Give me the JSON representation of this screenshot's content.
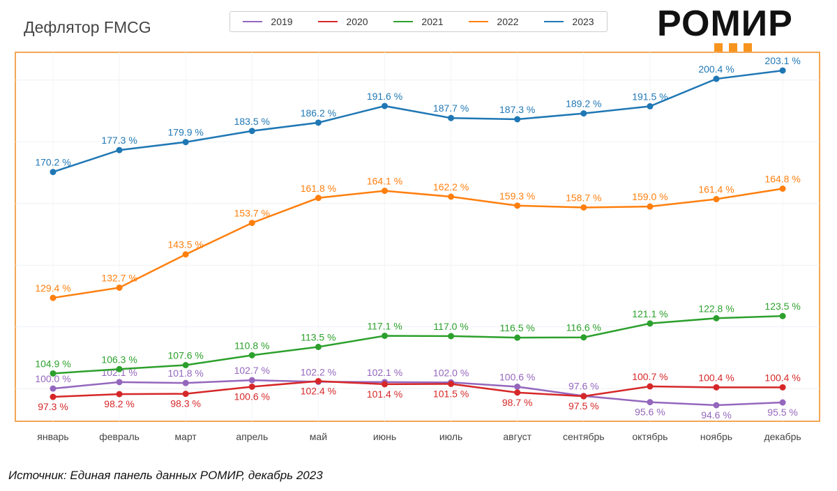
{
  "title": "Дефлятор FMCG",
  "logo": {
    "text": "РОМИР",
    "accent": "#f7941d"
  },
  "source": "Источник: Единая панель данных РОМИР, декабрь 2023",
  "chart_data": {
    "type": "line",
    "title": "Дефлятор FMCG",
    "categories": [
      "январь",
      "февраль",
      "март",
      "апрель",
      "май",
      "июнь",
      "июль",
      "август",
      "сентябрь",
      "октябрь",
      "ноябрь",
      "декабрь"
    ],
    "ylim": [
      89.4,
      209
    ],
    "grid": true,
    "legend_position": "top",
    "value_suffix": " %",
    "series": [
      {
        "name": "2019",
        "color": "#9467bd",
        "values": [
          100.0,
          102.1,
          101.8,
          102.7,
          102.2,
          102.1,
          102.0,
          100.6,
          97.6,
          95.6,
          94.6,
          95.5
        ]
      },
      {
        "name": "2020",
        "color": "#d62728",
        "values": [
          97.3,
          98.2,
          98.3,
          100.6,
          102.4,
          101.4,
          101.5,
          98.7,
          97.5,
          100.7,
          100.4,
          100.4
        ]
      },
      {
        "name": "2021",
        "color": "#2ca02c",
        "values": [
          104.9,
          106.3,
          107.6,
          110.8,
          113.5,
          117.1,
          117.0,
          116.5,
          116.6,
          121.1,
          122.8,
          123.5
        ]
      },
      {
        "name": "2022",
        "color": "#ff7f0e",
        "values": [
          129.4,
          132.7,
          143.5,
          153.7,
          161.8,
          164.1,
          162.2,
          159.3,
          158.7,
          159.0,
          161.4,
          164.8
        ]
      },
      {
        "name": "2023",
        "color": "#1f77b4",
        "values": [
          170.2,
          177.3,
          179.9,
          183.5,
          186.2,
          191.6,
          187.7,
          187.3,
          189.2,
          191.5,
          200.4,
          203.1
        ]
      }
    ]
  }
}
